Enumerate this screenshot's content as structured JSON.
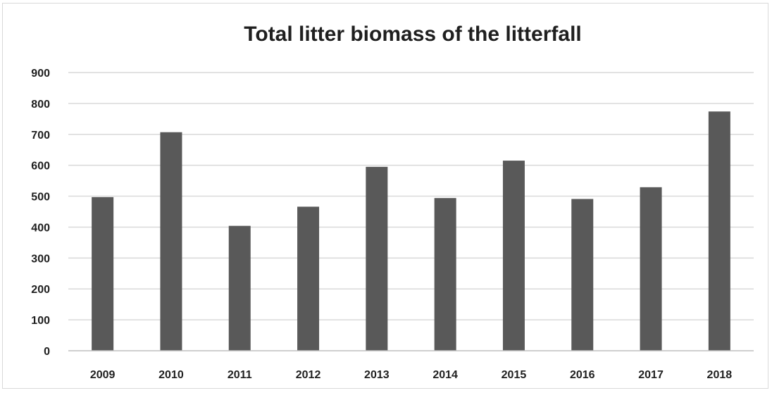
{
  "chart_data": {
    "type": "bar",
    "title": "Total litter biomass of the litterfall",
    "xlabel": "",
    "ylabel": "",
    "categories": [
      "2009",
      "2010",
      "2011",
      "2012",
      "2013",
      "2014",
      "2015",
      "2016",
      "2017",
      "2018"
    ],
    "values": [
      497,
      707,
      404,
      466,
      595,
      494,
      615,
      491,
      529,
      774
    ],
    "ylim": [
      0,
      900
    ],
    "yticks": [
      0,
      100,
      200,
      300,
      400,
      500,
      600,
      700,
      800,
      900
    ],
    "grid": true,
    "legend": "none",
    "bar_color": "#595959"
  }
}
